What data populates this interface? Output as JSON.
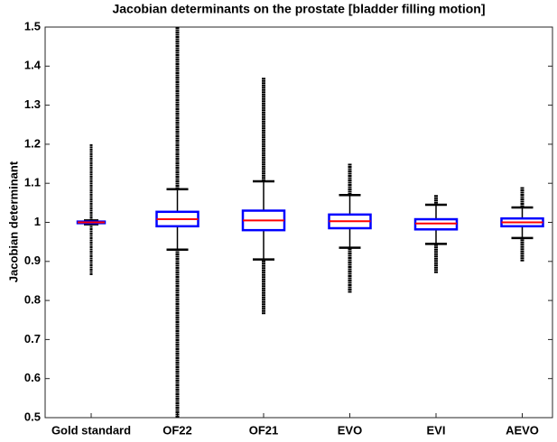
{
  "chart_data": {
    "type": "boxplot",
    "title": "Jacobian determinants on the prostate [bladder filling motion]",
    "ylabel": "Jacobian determinant",
    "categories": [
      "Gold standard",
      "OF22",
      "OF21",
      "EVO",
      "EVI",
      "AEVO"
    ],
    "boxes": [
      {
        "whisker_low": 0.995,
        "q1": 0.998,
        "median": 1.0,
        "q3": 1.002,
        "whisker_high": 1.005,
        "outlier_min": 0.865,
        "outlier_max": 1.2
      },
      {
        "whisker_low": 0.93,
        "q1": 0.99,
        "median": 1.008,
        "q3": 1.027,
        "whisker_high": 1.085,
        "outlier_min": 0.5,
        "outlier_max": 1.5
      },
      {
        "whisker_low": 0.905,
        "q1": 0.98,
        "median": 1.005,
        "q3": 1.03,
        "whisker_high": 1.105,
        "outlier_min": 0.765,
        "outlier_max": 1.37
      },
      {
        "whisker_low": 0.935,
        "q1": 0.985,
        "median": 1.003,
        "q3": 1.02,
        "whisker_high": 1.07,
        "outlier_min": 0.82,
        "outlier_max": 1.15
      },
      {
        "whisker_low": 0.945,
        "q1": 0.982,
        "median": 0.997,
        "q3": 1.008,
        "whisker_high": 1.045,
        "outlier_min": 0.87,
        "outlier_max": 1.07
      },
      {
        "whisker_low": 0.96,
        "q1": 0.99,
        "median": 1.0,
        "q3": 1.01,
        "whisker_high": 1.038,
        "outlier_min": 0.9,
        "outlier_max": 1.09
      }
    ],
    "box_color": "#0000ff",
    "median_color": "#ff0000",
    "whisker_color": "#000000",
    "ylim": [
      0.5,
      1.5
    ],
    "yticks": [
      0.5,
      0.6,
      0.7,
      0.8,
      0.9,
      1,
      1.1,
      1.2,
      1.3,
      1.4,
      1.5
    ],
    "grid": false
  }
}
